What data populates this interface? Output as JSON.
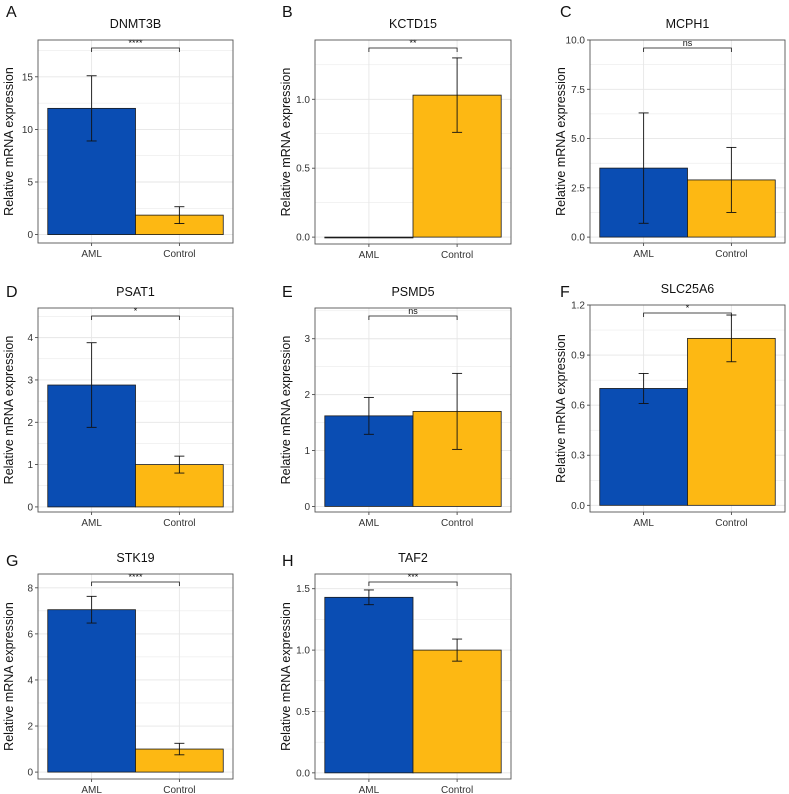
{
  "figure": {
    "y_axis_label": "Relative mRNA expression",
    "colors": {
      "AML": "#0A4DB3",
      "Control": "#FDB813",
      "grid": "#E6E6E6",
      "frame": "#555555",
      "bar_stroke": "#1a1a1a"
    }
  },
  "chart_data": [
    {
      "type": "bar",
      "panel": "A",
      "title": "DNMT3B",
      "ylabel": "Relative mRNA expression",
      "categories": [
        "AML",
        "Control"
      ],
      "values": [
        12.0,
        1.85
      ],
      "errors": [
        3.1,
        0.8
      ],
      "ylim": [
        -0.8,
        18.5
      ],
      "yticks": [
        0,
        5,
        10,
        15
      ],
      "ytick_labels": [
        "0",
        "5",
        "10",
        "15"
      ],
      "significance": "****"
    },
    {
      "type": "bar",
      "panel": "B",
      "title": "KCTD15",
      "ylabel": "Relative mRNA expression",
      "categories": [
        "AML",
        "Control"
      ],
      "values": [
        0.0,
        1.03
      ],
      "errors": [
        0.0,
        0.27
      ],
      "ylim": [
        -0.05,
        1.43
      ],
      "yticks": [
        0,
        0.5,
        1.0
      ],
      "ytick_labels": [
        "0.0",
        "0.5",
        "1.0"
      ],
      "significance": "**"
    },
    {
      "type": "bar",
      "panel": "C",
      "title": "MCPH1",
      "ylabel": "Relative mRNA expression",
      "categories": [
        "AML",
        "Control"
      ],
      "values": [
        3.5,
        2.9
      ],
      "errors": [
        2.8,
        1.65
      ],
      "ylim": [
        -0.3,
        10.0
      ],
      "yticks": [
        0,
        2.5,
        5.0,
        7.5,
        10.0
      ],
      "ytick_labels": [
        "0.0",
        "2.5",
        "5.0",
        "7.5",
        "10.0"
      ],
      "significance": "ns"
    },
    {
      "type": "bar",
      "panel": "D",
      "title": "PSAT1",
      "ylabel": "Relative mRNA expression",
      "categories": [
        "AML",
        "Control"
      ],
      "values": [
        2.88,
        1.0
      ],
      "errors": [
        1.0,
        0.2
      ],
      "ylim": [
        -0.12,
        4.7
      ],
      "yticks": [
        0,
        1,
        2,
        3,
        4
      ],
      "ytick_labels": [
        "0",
        "1",
        "2",
        "3",
        "4"
      ],
      "significance": "*"
    },
    {
      "type": "bar",
      "panel": "E",
      "title": "PSMD5",
      "ylabel": "Relative mRNA expression",
      "categories": [
        "AML",
        "Control"
      ],
      "values": [
        1.62,
        1.7
      ],
      "errors": [
        0.33,
        0.68
      ],
      "ylim": [
        -0.1,
        3.55
      ],
      "yticks": [
        0,
        1,
        2,
        3
      ],
      "ytick_labels": [
        "0",
        "1",
        "2",
        "3"
      ],
      "significance": "ns"
    },
    {
      "type": "bar",
      "panel": "F",
      "title": "SLC25A6",
      "ylabel": "Relative mRNA expression",
      "categories": [
        "AML",
        "Control"
      ],
      "values": [
        0.7,
        1.0
      ],
      "errors": [
        0.09,
        0.14
      ],
      "ylim": [
        -0.04,
        1.2
      ],
      "yticks": [
        0,
        0.3,
        0.6,
        0.9,
        1.2
      ],
      "ytick_labels": [
        "0.0",
        "0.3",
        "0.6",
        "0.9",
        "1.2"
      ],
      "significance": "*"
    },
    {
      "type": "bar",
      "panel": "G",
      "title": "STK19",
      "ylabel": "Relative mRNA expression",
      "categories": [
        "AML",
        "Control"
      ],
      "values": [
        7.05,
        1.0
      ],
      "errors": [
        0.58,
        0.25
      ],
      "ylim": [
        -0.3,
        8.6
      ],
      "yticks": [
        0,
        2,
        4,
        6,
        8
      ],
      "ytick_labels": [
        "0",
        "2",
        "4",
        "6",
        "8"
      ],
      "significance": "****"
    },
    {
      "type": "bar",
      "panel": "H",
      "title": "TAF2",
      "ylabel": "Relative mRNA expression",
      "categories": [
        "AML",
        "Control"
      ],
      "values": [
        1.43,
        1.0
      ],
      "errors": [
        0.06,
        0.09
      ],
      "ylim": [
        -0.05,
        1.62
      ],
      "yticks": [
        0,
        0.5,
        1.0,
        1.5
      ],
      "ytick_labels": [
        "0.0",
        "0.5",
        "1.0",
        "1.5"
      ],
      "significance": "***"
    }
  ]
}
